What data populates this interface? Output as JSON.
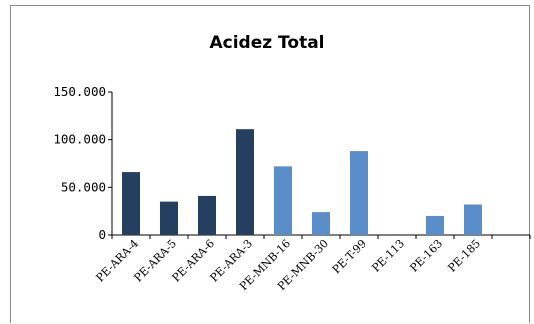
{
  "chart_data": {
    "type": "bar",
    "title": "Acidez Total",
    "xlabel": "",
    "ylabel": "",
    "categories": [
      "PE-ARA-4",
      "PE-ARA-5",
      "PE-ARA-6",
      "PE-ARA-3",
      "PE-MNB-16",
      "PE-MNB-30",
      "PE-T-99",
      "PE-113",
      "PE-163",
      "PE-185"
    ],
    "values": [
      66000,
      35000,
      41000,
      111000,
      72000,
      24000,
      88000,
      0,
      20000,
      32000
    ],
    "bar_colors": [
      "#243f60",
      "#243f60",
      "#243f60",
      "#243f60",
      "#5b8ec9",
      "#5b8ec9",
      "#5b8ec9",
      "#5b8ec9",
      "#5b8ec9",
      "#5b8ec9"
    ],
    "yticks": [
      0,
      50000,
      100000,
      150000
    ],
    "ytick_labels": [
      "0",
      "50.000",
      "100.000",
      "150.000"
    ],
    "ylim": [
      0,
      150000
    ],
    "grid": false,
    "legend": "none"
  }
}
